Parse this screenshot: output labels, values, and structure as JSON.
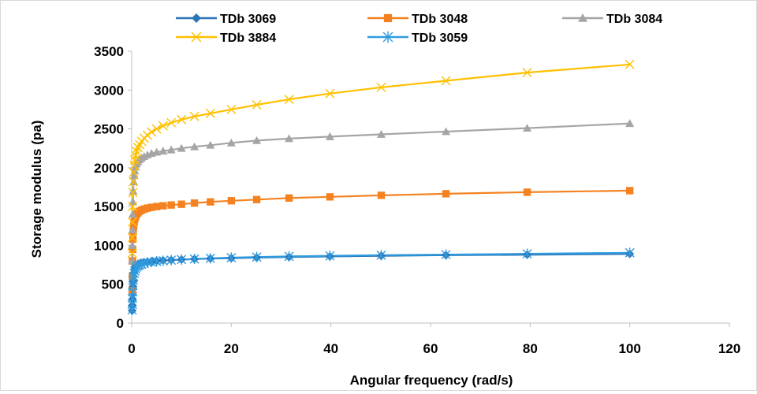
{
  "chart_data": {
    "type": "line",
    "title": "",
    "xlabel": "Angular frequency (rad/s)",
    "ylabel": "Storage modulus (pa)",
    "xlim": [
      0,
      120
    ],
    "ylim": [
      0,
      3500
    ],
    "xticks": [
      0,
      20,
      40,
      60,
      80,
      100,
      120
    ],
    "yticks": [
      0,
      500,
      1000,
      1500,
      2000,
      2500,
      3000,
      3500
    ],
    "grid": false,
    "legend_position": "top",
    "x": [
      0.1,
      0.126,
      0.158,
      0.2,
      0.251,
      0.316,
      0.398,
      0.501,
      0.631,
      0.794,
      1,
      1.26,
      1.58,
      2,
      2.51,
      3.16,
      3.98,
      5.01,
      6.31,
      7.94,
      10,
      12.6,
      15.8,
      20,
      25.1,
      31.6,
      39.8,
      50.1,
      63.1,
      79.4,
      100
    ],
    "series": [
      {
        "name": "TDb 3069",
        "color": "#2e75b6",
        "marker": "diamond",
        "values": [
          160,
          230,
          310,
          390,
          470,
          540,
          600,
          650,
          690,
          720,
          740,
          755,
          765,
          775,
          782,
          790,
          795,
          800,
          806,
          812,
          818,
          824,
          830,
          836,
          843,
          850,
          858,
          866,
          874,
          880,
          890
        ]
      },
      {
        "name": "TDb 3048",
        "color": "#f58220",
        "marker": "square",
        "values": [
          420,
          600,
          800,
          950,
          1080,
          1180,
          1250,
          1300,
          1340,
          1370,
          1400,
          1420,
          1440,
          1455,
          1468,
          1480,
          1490,
          1500,
          1510,
          1520,
          1530,
          1545,
          1560,
          1575,
          1590,
          1610,
          1625,
          1645,
          1665,
          1685,
          1705
        ]
      },
      {
        "name": "TDb 3084",
        "color": "#a5a5a5",
        "marker": "triangle",
        "values": [
          800,
          1000,
          1200,
          1400,
          1560,
          1700,
          1820,
          1900,
          1960,
          2010,
          2050,
          2080,
          2105,
          2125,
          2145,
          2165,
          2185,
          2200,
          2215,
          2230,
          2250,
          2270,
          2290,
          2320,
          2350,
          2375,
          2400,
          2430,
          2465,
          2510,
          2570
        ]
      },
      {
        "name": "TDb 3884",
        "color": "#ffc000",
        "marker": "x",
        "values": [
          900,
          1100,
          1300,
          1500,
          1680,
          1820,
          1940,
          2030,
          2100,
          2160,
          2210,
          2260,
          2300,
          2340,
          2380,
          2420,
          2460,
          2500,
          2540,
          2580,
          2620,
          2660,
          2700,
          2750,
          2810,
          2880,
          2955,
          3035,
          3120,
          3225,
          3330
        ]
      },
      {
        "name": "TDb 3059",
        "color": "#2f9be0",
        "marker": "asterisk",
        "values": [
          170,
          240,
          320,
          400,
          480,
          550,
          600,
          640,
          670,
          700,
          720,
          735,
          748,
          760,
          770,
          778,
          786,
          794,
          802,
          810,
          818,
          826,
          834,
          842,
          850,
          858,
          866,
          874,
          882,
          892,
          905
        ]
      }
    ]
  }
}
